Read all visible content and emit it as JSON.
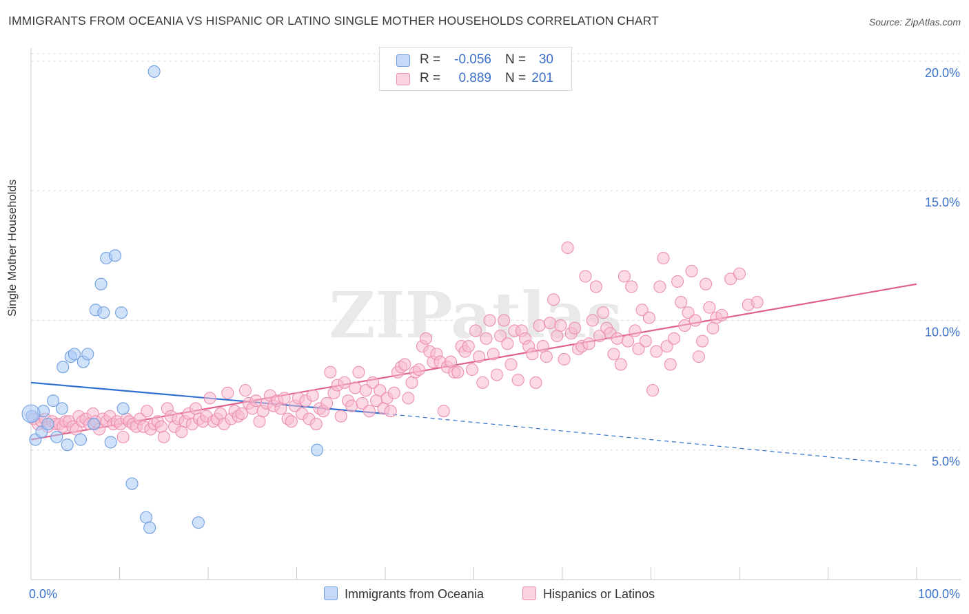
{
  "title": "IMMIGRANTS FROM OCEANIA VS HISPANIC OR LATINO SINGLE MOTHER HOUSEHOLDS CORRELATION CHART",
  "source": "Source: ZipAtlas.com",
  "watermark": "ZIPatlas",
  "legend": {
    "rows": [
      {
        "r_label": "R =",
        "r_value": "-0.056",
        "n_label": "N =",
        "n_value": "30",
        "color": "#aac8f5"
      },
      {
        "r_label": "R =",
        "r_value": "0.889",
        "n_label": "N =",
        "n_value": "201",
        "color": "#f8bcd0"
      }
    ]
  },
  "bottom_legend": {
    "oceania": "Immigrants from Oceania",
    "hispanic": "Hispanics or Latinos"
  },
  "colors": {
    "blue_fill": "#aac8f5",
    "blue_stroke": "#6f9ee0",
    "blue_line": "#2f6fd0",
    "pink_fill": "#f8bcd0",
    "pink_stroke": "#ec8fae",
    "pink_line": "#e0608c",
    "tick_label": "#3a6fc9",
    "grid": "#dcdcdc"
  },
  "chart_data": {
    "type": "scatter",
    "title": "IMMIGRANTS FROM OCEANIA VS HISPANIC OR LATINO SINGLE MOTHER HOUSEHOLDS CORRELATION CHART",
    "xlabel": "",
    "ylabel": "Single Mother Households",
    "xlim": [
      0,
      100
    ],
    "ylim": [
      0,
      20.5
    ],
    "x_tick_labels": [
      "0.0%",
      "100.0%"
    ],
    "y_ticks": [
      5,
      10,
      15,
      20
    ],
    "y_tick_labels": [
      "5.0%",
      "10.0%",
      "15.0%",
      "20.0%"
    ],
    "grid": true,
    "legend_placement": "top-center",
    "series": [
      {
        "name": "Immigrants from Oceania",
        "trend": {
          "x": [
            0,
            40
          ],
          "y": [
            7.6,
            6.4
          ],
          "dashed_to": [
            100,
            4.4
          ]
        },
        "points": [
          [
            0.1,
            6.3
          ],
          [
            0.5,
            5.4
          ],
          [
            1.2,
            5.7
          ],
          [
            1.4,
            6.5
          ],
          [
            1.9,
            6.0
          ],
          [
            2.5,
            6.9
          ],
          [
            2.9,
            5.5
          ],
          [
            3.5,
            6.6
          ],
          [
            3.6,
            8.2
          ],
          [
            4.1,
            5.2
          ],
          [
            4.5,
            8.6
          ],
          [
            4.9,
            8.7
          ],
          [
            5.6,
            5.4
          ],
          [
            5.9,
            8.4
          ],
          [
            6.4,
            8.7
          ],
          [
            7.1,
            6.0
          ],
          [
            7.3,
            10.4
          ],
          [
            7.9,
            11.4
          ],
          [
            8.2,
            10.3
          ],
          [
            8.5,
            12.4
          ],
          [
            9.0,
            5.3
          ],
          [
            9.5,
            12.5
          ],
          [
            10.2,
            10.3
          ],
          [
            10.4,
            6.6
          ],
          [
            11.4,
            3.7
          ],
          [
            13.0,
            2.4
          ],
          [
            13.4,
            2.0
          ],
          [
            13.9,
            19.6
          ],
          [
            18.9,
            2.2
          ],
          [
            32.3,
            5.0
          ]
        ]
      },
      {
        "name": "Hispanics or Latinos",
        "trend": {
          "x": [
            0,
            100
          ],
          "y": [
            5.4,
            11.4
          ]
        },
        "points": [
          [
            0.3,
            6.2
          ],
          [
            0.8,
            6.0
          ],
          [
            1.2,
            6.1
          ],
          [
            1.6,
            6.2
          ],
          [
            1.9,
            5.9
          ],
          [
            2.4,
            6.1
          ],
          [
            2.8,
            6.0
          ],
          [
            3.2,
            6.0
          ],
          [
            3.6,
            5.9
          ],
          [
            3.9,
            6.1
          ],
          [
            4.3,
            6.1
          ],
          [
            4.7,
            5.9
          ],
          [
            5.1,
            5.8
          ],
          [
            5.4,
            6.3
          ],
          [
            5.8,
            6.1
          ],
          [
            6.2,
            6.2
          ],
          [
            6.6,
            6.0
          ],
          [
            7.0,
            6.4
          ],
          [
            7.3,
            6.1
          ],
          [
            7.7,
            5.8
          ],
          [
            8.1,
            6.2
          ],
          [
            8.5,
            6.1
          ],
          [
            8.9,
            6.3
          ],
          [
            9.3,
            6.0
          ],
          [
            9.7,
            6.1
          ],
          [
            10.1,
            6.0
          ],
          [
            10.4,
            5.5
          ],
          [
            10.8,
            6.2
          ],
          [
            11.1,
            6.1
          ],
          [
            11.5,
            6.0
          ],
          [
            11.9,
            5.9
          ],
          [
            12.3,
            6.2
          ],
          [
            12.7,
            5.9
          ],
          [
            13.1,
            6.5
          ],
          [
            13.5,
            5.8
          ],
          [
            13.9,
            6.0
          ],
          [
            14.3,
            6.1
          ],
          [
            14.7,
            5.9
          ],
          [
            15.0,
            5.5
          ],
          [
            15.4,
            6.6
          ],
          [
            15.8,
            6.3
          ],
          [
            16.2,
            5.9
          ],
          [
            16.6,
            6.2
          ],
          [
            17.0,
            5.7
          ],
          [
            17.4,
            6.1
          ],
          [
            17.8,
            6.4
          ],
          [
            18.2,
            6.0
          ],
          [
            18.6,
            6.6
          ],
          [
            19.0,
            6.2
          ],
          [
            19.4,
            6.1
          ],
          [
            19.8,
            6.3
          ],
          [
            20.2,
            7.0
          ],
          [
            20.6,
            6.1
          ],
          [
            21.0,
            6.2
          ],
          [
            21.4,
            6.4
          ],
          [
            21.8,
            6.0
          ],
          [
            22.2,
            7.2
          ],
          [
            22.6,
            6.2
          ],
          [
            23.0,
            6.5
          ],
          [
            23.4,
            6.3
          ],
          [
            23.8,
            6.4
          ],
          [
            24.2,
            7.3
          ],
          [
            24.6,
            6.8
          ],
          [
            25.0,
            6.6
          ],
          [
            25.4,
            6.9
          ],
          [
            25.8,
            6.1
          ],
          [
            26.2,
            6.5
          ],
          [
            26.6,
            6.8
          ],
          [
            27.0,
            7.1
          ],
          [
            27.4,
            6.7
          ],
          [
            27.8,
            6.9
          ],
          [
            28.2,
            6.6
          ],
          [
            28.6,
            7.0
          ],
          [
            29.0,
            6.2
          ],
          [
            29.4,
            6.1
          ],
          [
            29.8,
            6.7
          ],
          [
            30.2,
            7.0
          ],
          [
            30.6,
            6.4
          ],
          [
            31.0,
            6.9
          ],
          [
            31.4,
            6.2
          ],
          [
            31.8,
            7.1
          ],
          [
            32.2,
            6.0
          ],
          [
            32.6,
            6.6
          ],
          [
            33.0,
            6.5
          ],
          [
            33.4,
            6.8
          ],
          [
            33.8,
            8.0
          ],
          [
            34.2,
            7.2
          ],
          [
            34.6,
            7.5
          ],
          [
            35.0,
            6.3
          ],
          [
            35.4,
            7.6
          ],
          [
            35.8,
            6.9
          ],
          [
            36.2,
            6.7
          ],
          [
            36.6,
            7.4
          ],
          [
            37.0,
            8.0
          ],
          [
            37.4,
            6.8
          ],
          [
            37.8,
            7.3
          ],
          [
            38.2,
            6.5
          ],
          [
            38.6,
            7.6
          ],
          [
            39.0,
            6.9
          ],
          [
            39.4,
            7.3
          ],
          [
            39.8,
            6.6
          ],
          [
            40.2,
            7.0
          ],
          [
            40.6,
            6.5
          ],
          [
            41.0,
            7.2
          ],
          [
            41.4,
            8.0
          ],
          [
            41.8,
            8.2
          ],
          [
            42.2,
            8.3
          ],
          [
            42.6,
            7.0
          ],
          [
            43.0,
            7.6
          ],
          [
            43.4,
            8.0
          ],
          [
            43.8,
            8.1
          ],
          [
            44.2,
            9.0
          ],
          [
            44.6,
            9.3
          ],
          [
            45.0,
            8.8
          ],
          [
            45.4,
            8.4
          ],
          [
            45.8,
            8.7
          ],
          [
            46.2,
            8.4
          ],
          [
            46.6,
            6.5
          ],
          [
            47.0,
            8.2
          ],
          [
            47.4,
            8.4
          ],
          [
            47.8,
            8.0
          ],
          [
            48.2,
            8.0
          ],
          [
            48.6,
            9.0
          ],
          [
            49.0,
            8.8
          ],
          [
            49.4,
            9.0
          ],
          [
            49.8,
            8.1
          ],
          [
            50.2,
            9.6
          ],
          [
            50.6,
            8.6
          ],
          [
            51.0,
            7.6
          ],
          [
            51.4,
            9.3
          ],
          [
            51.8,
            10.0
          ],
          [
            52.2,
            8.7
          ],
          [
            52.6,
            7.9
          ],
          [
            53.0,
            9.4
          ],
          [
            53.4,
            10.0
          ],
          [
            53.8,
            9.1
          ],
          [
            54.2,
            8.3
          ],
          [
            54.6,
            9.6
          ],
          [
            55.0,
            7.7
          ],
          [
            55.4,
            9.6
          ],
          [
            55.8,
            9.3
          ],
          [
            56.2,
            9.0
          ],
          [
            56.6,
            8.7
          ],
          [
            57.0,
            7.6
          ],
          [
            57.4,
            9.8
          ],
          [
            57.8,
            9.0
          ],
          [
            58.2,
            8.6
          ],
          [
            58.6,
            9.9
          ],
          [
            59.0,
            10.8
          ],
          [
            59.4,
            9.4
          ],
          [
            59.8,
            9.8
          ],
          [
            60.2,
            8.5
          ],
          [
            60.6,
            12.8
          ],
          [
            61.0,
            9.5
          ],
          [
            61.4,
            9.7
          ],
          [
            61.8,
            8.9
          ],
          [
            62.2,
            9.0
          ],
          [
            62.6,
            11.7
          ],
          [
            63.0,
            9.1
          ],
          [
            63.4,
            10.0
          ],
          [
            63.8,
            11.3
          ],
          [
            64.2,
            9.4
          ],
          [
            64.6,
            10.3
          ],
          [
            65.0,
            9.7
          ],
          [
            65.4,
            9.5
          ],
          [
            65.8,
            8.7
          ],
          [
            66.2,
            9.3
          ],
          [
            66.6,
            8.3
          ],
          [
            67.0,
            11.7
          ],
          [
            67.4,
            9.2
          ],
          [
            67.8,
            11.3
          ],
          [
            68.2,
            9.6
          ],
          [
            68.6,
            8.9
          ],
          [
            69.0,
            10.4
          ],
          [
            69.4,
            9.2
          ],
          [
            69.8,
            10.1
          ],
          [
            70.2,
            7.3
          ],
          [
            70.6,
            8.8
          ],
          [
            71.0,
            11.3
          ],
          [
            71.4,
            12.4
          ],
          [
            71.8,
            9.0
          ],
          [
            72.2,
            8.3
          ],
          [
            72.6,
            9.3
          ],
          [
            73.0,
            11.5
          ],
          [
            73.4,
            10.7
          ],
          [
            73.8,
            9.8
          ],
          [
            74.2,
            10.3
          ],
          [
            74.6,
            11.9
          ],
          [
            75.0,
            10.0
          ],
          [
            75.4,
            8.6
          ],
          [
            75.8,
            9.2
          ],
          [
            76.2,
            11.4
          ],
          [
            76.6,
            10.5
          ],
          [
            77.0,
            9.7
          ],
          [
            77.4,
            10.1
          ],
          [
            78.0,
            10.2
          ],
          [
            79.0,
            11.6
          ],
          [
            80.0,
            11.8
          ],
          [
            81.0,
            10.6
          ],
          [
            82.0,
            10.7
          ]
        ]
      }
    ]
  }
}
